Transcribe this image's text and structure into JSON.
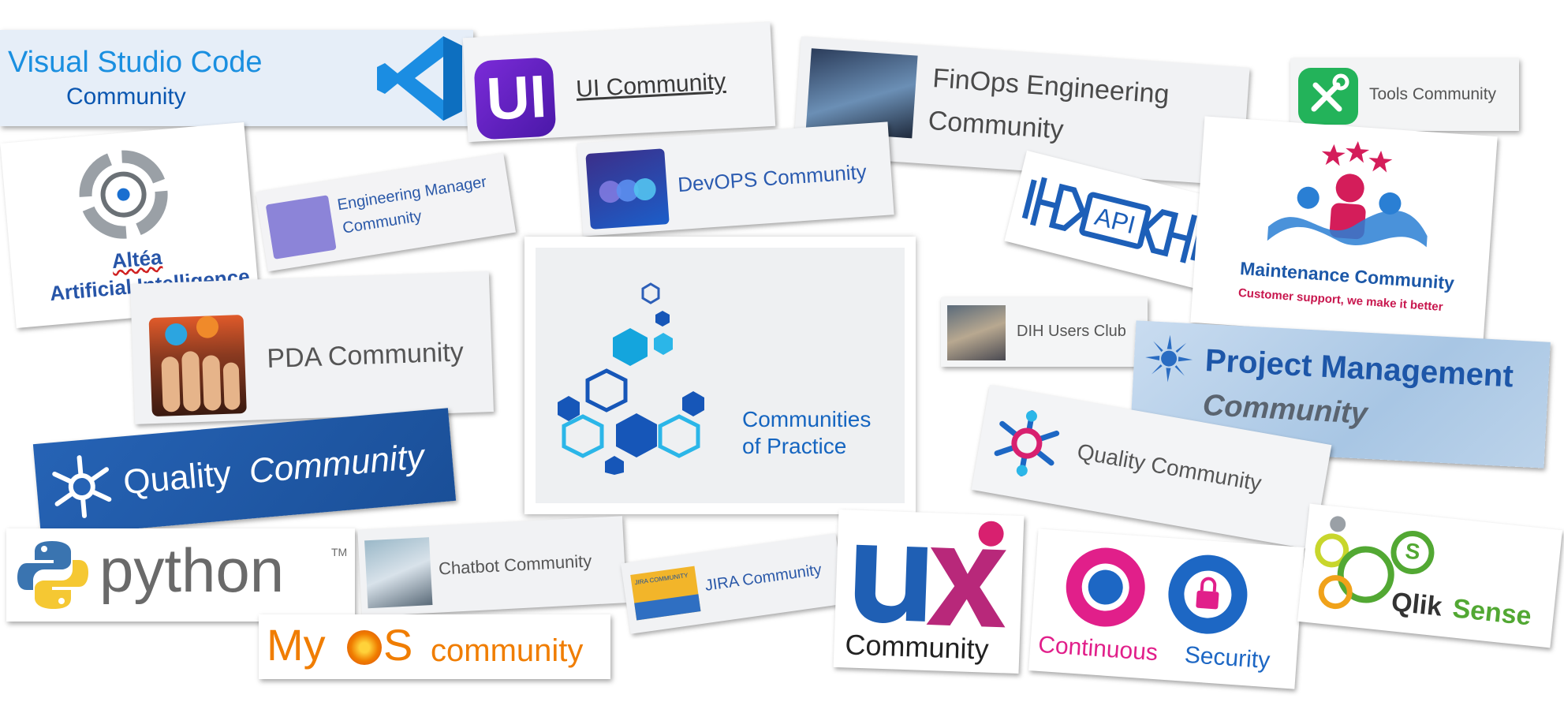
{
  "collage": {
    "center": {
      "title_line1": "Communities",
      "title_line2": "of Practice"
    },
    "cards": {
      "vscode": {
        "line1": "Visual Studio Code",
        "line2": "Community"
      },
      "ui": {
        "label": "UI Community",
        "icon_text": "UI"
      },
      "finops": {
        "line1": "FinOps Engineering",
        "line2": "Community"
      },
      "tools": {
        "label": "Tools Community"
      },
      "altea": {
        "line1": "Altéa",
        "line2": "Artificial Intelligence"
      },
      "eng_manager": {
        "line1": "Engineering Manager",
        "line2": "Community"
      },
      "devops": {
        "label": "DevOPS Community"
      },
      "api": {
        "label": "API"
      },
      "maintenance": {
        "line1": "Maintenance Community",
        "line2": "Customer support, we make it better"
      },
      "pda": {
        "label": "PDA Community"
      },
      "dih": {
        "label": "DIH Users Club"
      },
      "project_mgmt": {
        "line1": "Project Management",
        "line2": "Community"
      },
      "quality_blue": {
        "word1": "Quality",
        "word2": "Community"
      },
      "quality_grey": {
        "label": "Quality Community"
      },
      "python": {
        "label": "python",
        "tm": "TM"
      },
      "chatbot": {
        "label": "Chatbot Community"
      },
      "jira": {
        "label": "JIRA Community",
        "badge": "JIRA COMMUNITY"
      },
      "ux": {
        "big": "ux",
        "label": "Community"
      },
      "cont_sec": {
        "word1": "Continuous",
        "word2": "Security"
      },
      "qlik": {
        "word1": "Qlik",
        "word2": "Sense"
      },
      "myos": {
        "part1": "My",
        "part2": "S",
        "word2": "community"
      }
    }
  },
  "colors": {
    "vscode_blue": "#0a7fd3",
    "devops_blue": "#2a5aa8",
    "quality_band": "#1f5aa6",
    "myos_orange": "#f07d00",
    "ux_pink": "#d8206f",
    "qlik_green": "#52a833",
    "center_blue": "#1565c0"
  }
}
